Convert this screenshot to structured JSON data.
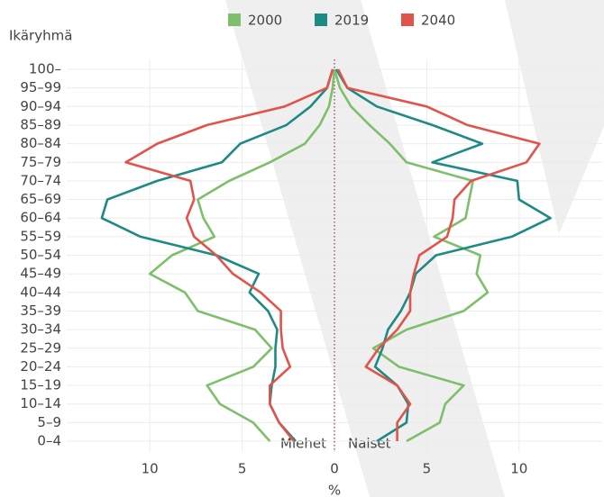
{
  "chart_data": {
    "type": "line",
    "orientation": "horizontal",
    "y_axis_label": "Ikäryhmä",
    "x_axis_label": "%",
    "men_label": "Miehet",
    "women_label": "Naiset",
    "categories": [
      "0–4",
      "5–9",
      "10–14",
      "15–19",
      "20–24",
      "25–29",
      "30–34",
      "35–39",
      "40–44",
      "45–49",
      "50–54",
      "55–59",
      "60–64",
      "65–69",
      "70–74",
      "75–79",
      "80–84",
      "85–89",
      "90–94",
      "95–99",
      "100–"
    ],
    "series": [
      {
        "name": "2000",
        "color": "#7dbf6a",
        "men": [
          3.5,
          4.4,
          6.2,
          6.9,
          4.4,
          3.4,
          4.3,
          7.4,
          8.1,
          10.0,
          8.8,
          6.5,
          7.1,
          7.4,
          5.7,
          3.5,
          1.6,
          0.8,
          0.3,
          0.1,
          0.0
        ],
        "women": [
          3.9,
          5.7,
          6.0,
          7.0,
          3.5,
          2.1,
          3.9,
          7.0,
          8.3,
          7.7,
          7.9,
          5.4,
          7.1,
          7.3,
          7.5,
          3.9,
          3.0,
          1.9,
          0.9,
          0.3,
          0.0
        ]
      },
      {
        "name": "2019",
        "color": "#1e8a84",
        "men": [
          2.1,
          3.0,
          3.5,
          3.4,
          3.2,
          3.2,
          3.1,
          3.6,
          4.6,
          4.1,
          6.4,
          10.5,
          12.6,
          12.3,
          9.6,
          6.1,
          5.1,
          2.6,
          1.3,
          0.4,
          0.1
        ],
        "women": [
          2.3,
          3.9,
          4.0,
          3.4,
          2.2,
          2.6,
          2.9,
          3.6,
          4.1,
          4.4,
          5.5,
          9.6,
          11.7,
          10.0,
          9.9,
          5.3,
          8.0,
          5.3,
          2.3,
          0.7,
          0.1
        ]
      },
      {
        "name": "2040",
        "color": "#e2534c",
        "men": [
          2.2,
          3.0,
          3.5,
          3.5,
          2.4,
          2.8,
          2.9,
          2.9,
          4.0,
          5.5,
          6.4,
          7.6,
          8.0,
          7.6,
          7.8,
          11.3,
          9.6,
          6.9,
          2.7,
          0.4,
          0.1
        ],
        "women": [
          3.4,
          3.4,
          4.1,
          3.4,
          1.7,
          2.4,
          3.4,
          4.1,
          4.1,
          4.3,
          4.6,
          6.1,
          6.4,
          6.5,
          7.4,
          10.4,
          11.1,
          7.2,
          5.0,
          0.7,
          0.2
        ]
      }
    ],
    "xlim": [
      -14.5,
      14.5
    ],
    "xticks": [
      {
        "value": -10,
        "label": "10"
      },
      {
        "value": -5,
        "label": "5"
      },
      0,
      5,
      10
    ],
    "grid": true
  }
}
